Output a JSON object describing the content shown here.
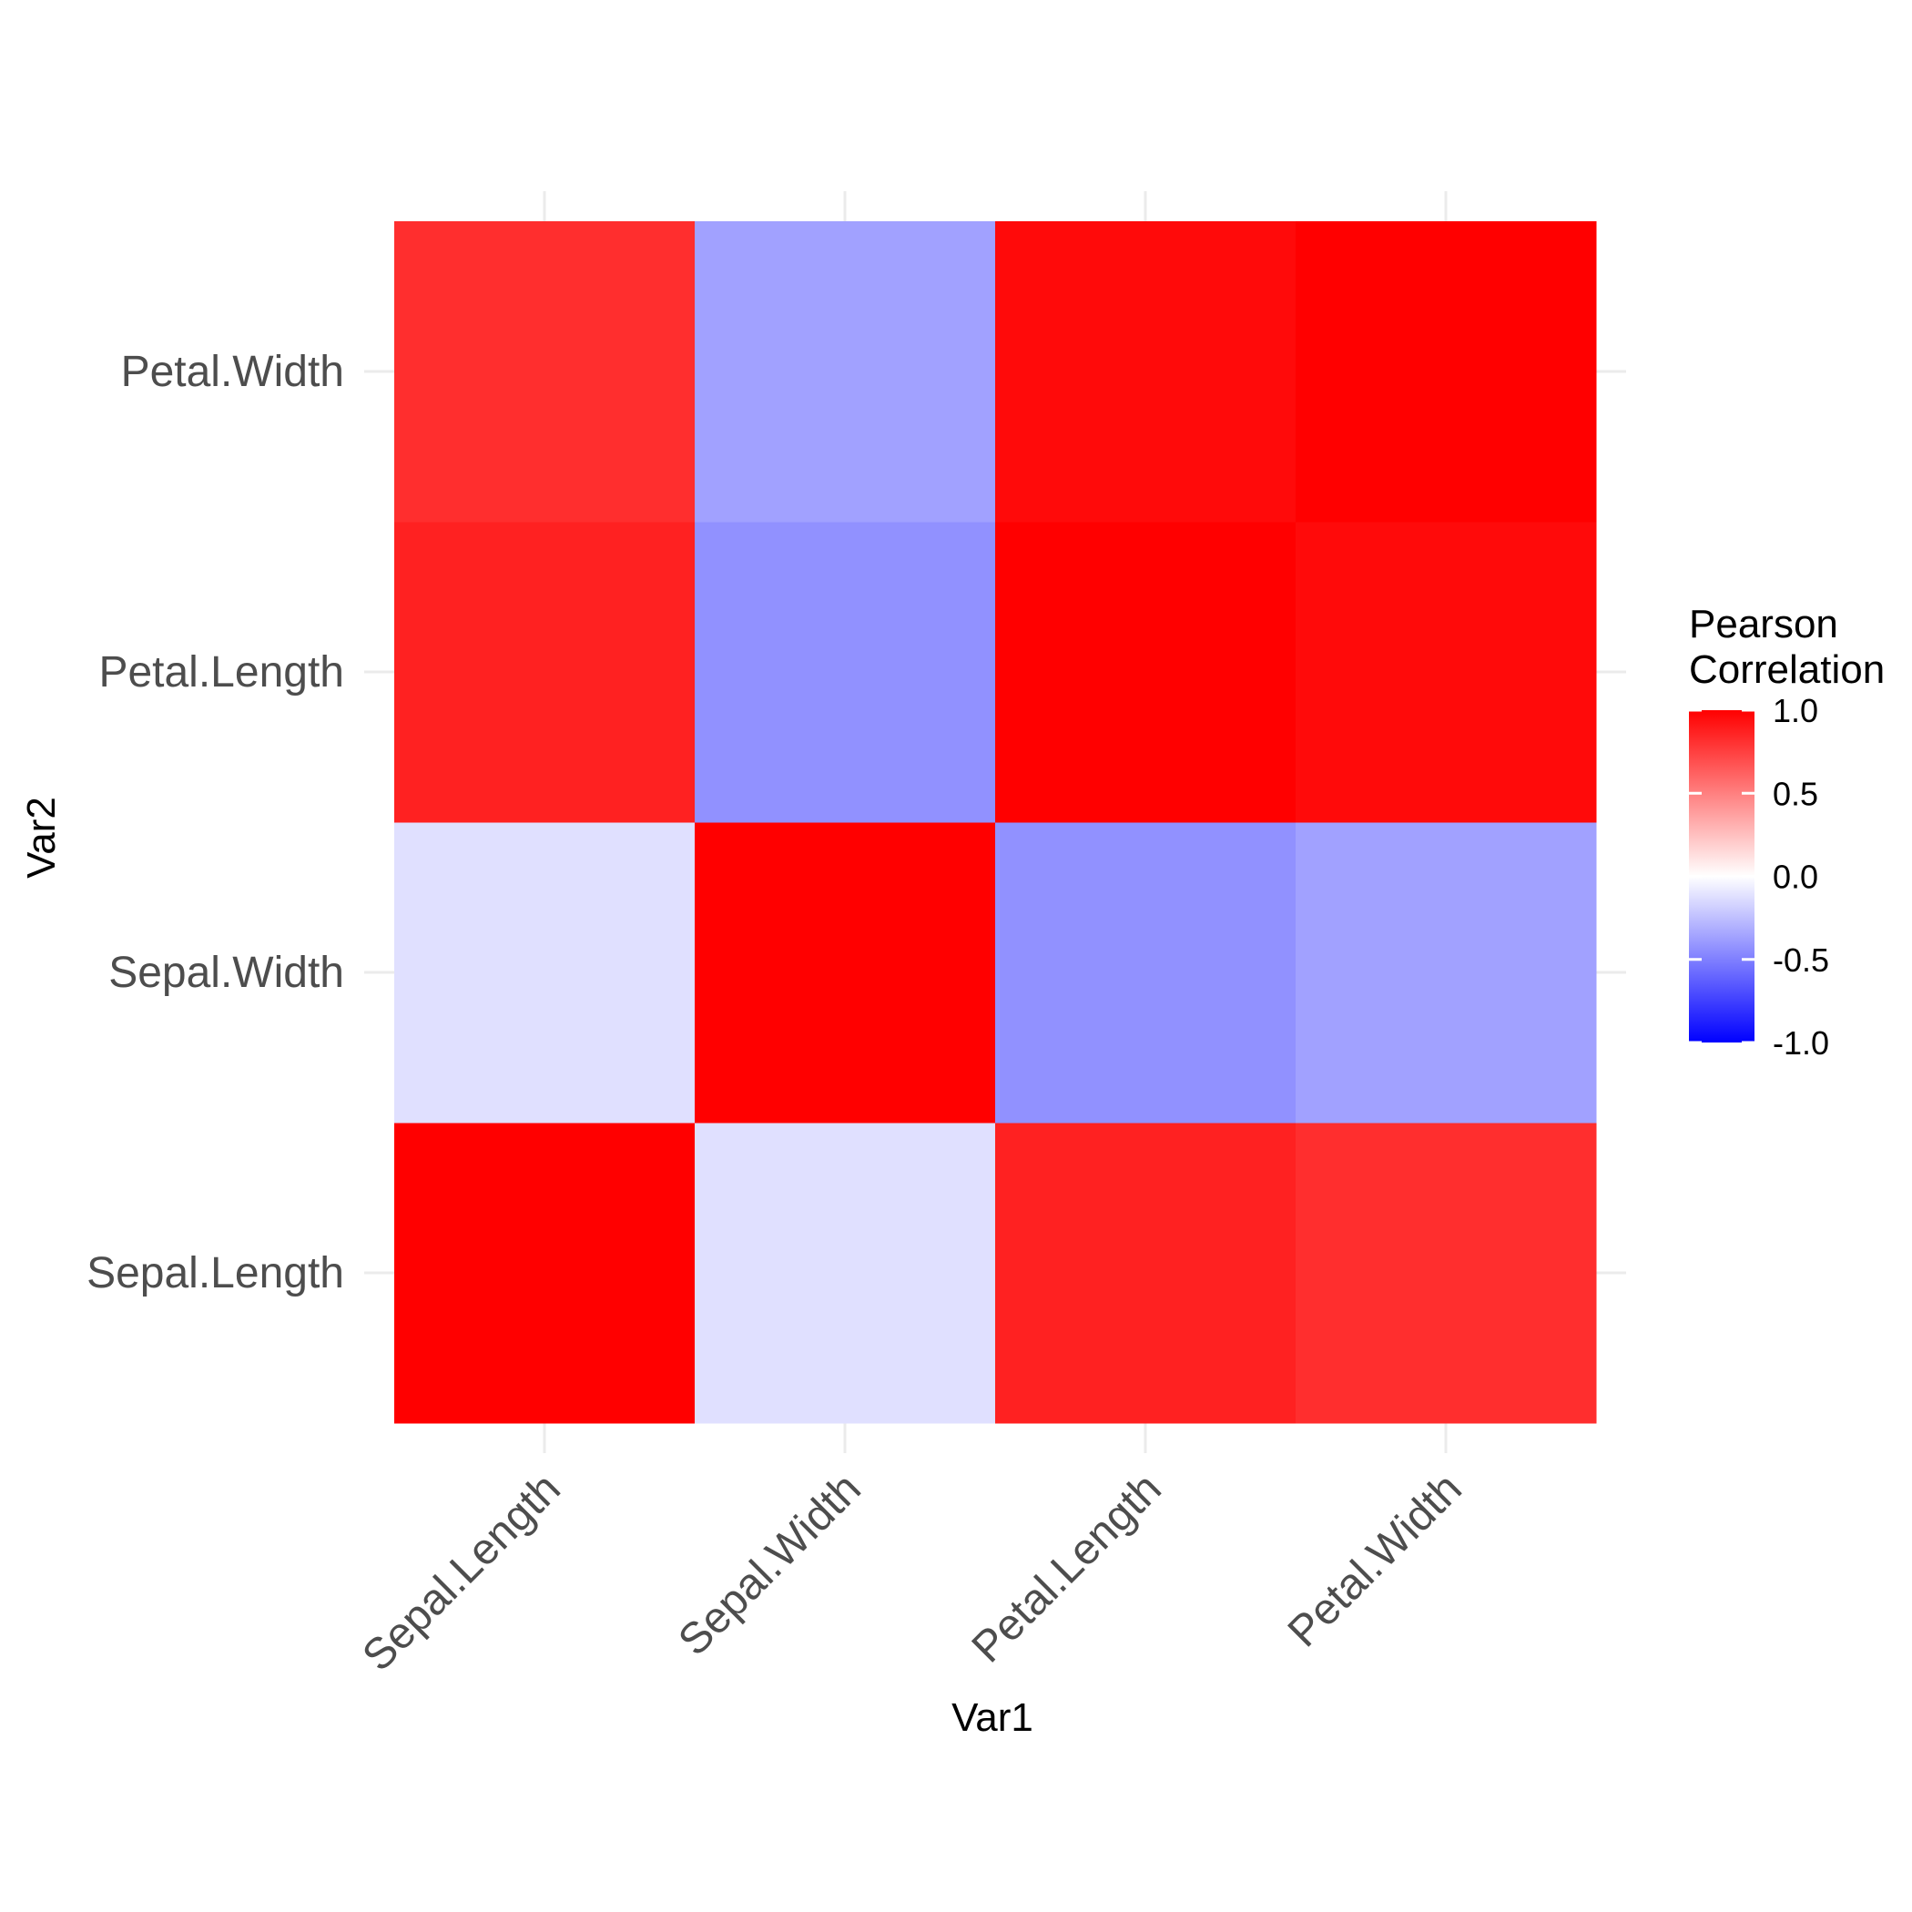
{
  "chart_data": {
    "type": "heatmap",
    "x_categories": [
      "Sepal.Length",
      "Sepal.Width",
      "Petal.Length",
      "Petal.Width"
    ],
    "y_categories": [
      "Sepal.Length",
      "Sepal.Width",
      "Petal.Length",
      "Petal.Width"
    ],
    "values": [
      [
        1.0,
        -0.12,
        0.87,
        0.82
      ],
      [
        -0.12,
        1.0,
        -0.43,
        -0.37
      ],
      [
        0.87,
        -0.43,
        1.0,
        0.96
      ],
      [
        0.82,
        -0.37,
        0.96,
        1.0
      ]
    ],
    "xlabel": "Var1",
    "ylabel": "Var2",
    "legend": {
      "title_lines": [
        "Pearson",
        "Correlation"
      ],
      "ticks": [
        "1.0",
        "0.5",
        "0.0",
        "-0.5",
        "-1.0"
      ],
      "tick_values": [
        1.0,
        0.5,
        0.0,
        -0.5,
        -1.0
      ],
      "range": [
        -1,
        1
      ],
      "placement": "right"
    },
    "colors": {
      "low": "#0000ff",
      "mid": "#ffffff",
      "high": "#ff0000"
    },
    "grid": true
  }
}
